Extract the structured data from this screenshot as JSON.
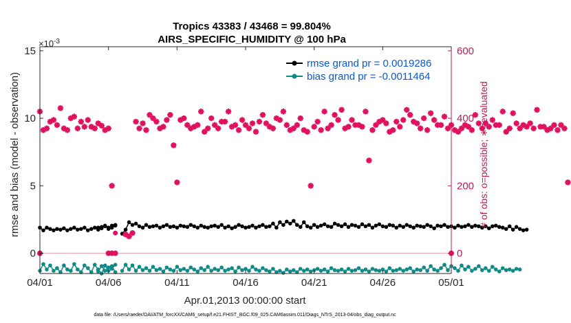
{
  "chart_data": {
    "type": "line",
    "title_line1": "Tropics 43383 / 43468 = 99.804%",
    "title_line2": "AIRS_SPECIFIC_HUMIDITY @ 100 hPa",
    "xlabel": "Apr.01,2013 00:00:00 start",
    "ylabel_left": "rmse and bias (model - observation)",
    "ylabel_right": "# of obs: o=possible; ∗=evaluated",
    "exponent_label": "×10",
    "exponent_power": "-3",
    "x_range_days": [
      0,
      30
    ],
    "y_left_range": [
      -1.5,
      15.3
    ],
    "y_right_range": [
      -60.0,
      612.0
    ],
    "x_ticks": [
      {
        "day": 0,
        "label": "04/01"
      },
      {
        "day": 5,
        "label": "04/06"
      },
      {
        "day": 10,
        "label": "04/11"
      },
      {
        "day": 15,
        "label": "04/16"
      },
      {
        "day": 20,
        "label": "04/21"
      },
      {
        "day": 25,
        "label": "04/26"
      },
      {
        "day": 30,
        "label": "05/01"
      }
    ],
    "y_left_ticks": [
      {
        "value": 0,
        "label": "0"
      },
      {
        "value": 5,
        "label": "5"
      },
      {
        "value": 10,
        "label": "10"
      },
      {
        "value": 15,
        "label": "15"
      }
    ],
    "y_right_ticks": [
      {
        "value": 0,
        "label": "0"
      },
      {
        "value": 200,
        "label": "200"
      },
      {
        "value": 400,
        "label": "400"
      },
      {
        "value": 600,
        "label": "600"
      }
    ],
    "legend": [
      {
        "name": "rmse grand pr = 0.0019286",
        "color": "#000000"
      },
      {
        "name": "bias grand pr = -0.0011464",
        "color": "#0e8a87"
      }
    ],
    "series": [
      {
        "name": "rmse",
        "axis": "left",
        "color": "#000000",
        "segments": [
          {
            "start_day": 0.0,
            "step": 0.25,
            "values": [
              1.9,
              1.7,
              1.9,
              1.8,
              1.7,
              1.8,
              1.75,
              1.85,
              1.7,
              1.8,
              1.9,
              1.75,
              1.8,
              1.9,
              1.7,
              1.8,
              1.9,
              1.75,
              1.85,
              2.0,
              1.8,
              1.9,
              2.05
            ]
          },
          {
            "start_day": 4.25,
            "step": 0.25,
            "values": [
              1.9,
              1.95,
              2.05,
              1.9,
              2.05,
              2.1
            ]
          },
          {
            "start_day": 6.0,
            "step": 0.25,
            "values": [
              1.45,
              1.75,
              2.3,
              2.1,
              2.2,
              2.0,
              1.9,
              2.1,
              1.95,
              2.0,
              2.05,
              1.9,
              2.0,
              2.1,
              1.95,
              2.0,
              1.9,
              2.05,
              2.0,
              1.95,
              2.1,
              2.0,
              1.9,
              2.05,
              1.95,
              1.9,
              2.0,
              2.05,
              1.95,
              2.1,
              1.9,
              2.0,
              1.85,
              1.95,
              2.1,
              2.0,
              1.9,
              1.95,
              2.05,
              1.9,
              2.0,
              2.1,
              1.95,
              2.0,
              2.2,
              1.9,
              2.3,
              2.1,
              2.35,
              2.2,
              2.4,
              2.1,
              1.95,
              2.3,
              2.0,
              1.9,
              2.1,
              1.95,
              2.05,
              2.15,
              2.0,
              1.95,
              2.2,
              2.1,
              2.0,
              2.15,
              1.95,
              2.1,
              2.05,
              1.95,
              2.15,
              2.0,
              2.1,
              1.9,
              2.05,
              2.15,
              2.0,
              1.95,
              2.1,
              2.05,
              1.9,
              2.05,
              1.95,
              2.1,
              2.0,
              1.9,
              2.05,
              2.0,
              1.95,
              2.1,
              2.0,
              1.85,
              2.05,
              2.0,
              2.1,
              1.95,
              2.0,
              1.9,
              2.05,
              1.95,
              2.0,
              2.1,
              1.95,
              2.05,
              2.0,
              1.9,
              2.0,
              1.85,
              2.0,
              2.05,
              1.95,
              1.9,
              1.8,
              2.0,
              1.75,
              1.95,
              1.8,
              1.7,
              1.75
            ]
          }
        ]
      },
      {
        "name": "bias",
        "axis": "left",
        "color": "#0e8a87",
        "segments": [
          {
            "start_day": 0.0,
            "step": 0.25,
            "values": [
              -1.3,
              -0.8,
              -1.2,
              -0.9,
              -1.3,
              -1.1,
              -1.4,
              -0.9,
              -1.2,
              -1.3,
              -0.8,
              -1.2,
              -1.4,
              -0.9,
              -1.1,
              -1.4,
              -0.85,
              -1.2,
              -1.5,
              -0.9,
              -1.3,
              -1.15,
              -0.85
            ]
          },
          {
            "start_day": 4.25,
            "step": 0.25,
            "values": [
              -1.35,
              -0.95,
              -1.3,
              -1.05,
              -0.95,
              -1.4
            ]
          },
          {
            "start_day": 6.0,
            "step": 0.25,
            "values": [
              -1.3,
              -0.85,
              -1.2,
              -0.9,
              -1.3,
              -1.0,
              -1.25,
              -1.1,
              -1.3,
              -1.0,
              -1.25,
              -1.15,
              -1.35,
              -1.05,
              -1.2,
              -1.3,
              -1.0,
              -1.25,
              -1.15,
              -1.3,
              -1.05,
              -1.2,
              -1.35,
              -1.1,
              -1.25,
              -1.0,
              -1.3,
              -1.15,
              -1.25,
              -1.05,
              -1.3,
              -1.2,
              -1.1,
              -1.35,
              -1.05,
              -1.25,
              -1.15,
              -1.3,
              -1.0,
              -1.2,
              -1.3,
              -1.1,
              -1.25,
              -1.35,
              -1.15,
              -1.4,
              -1.3,
              -1.45,
              -1.2,
              -1.35,
              -1.25,
              -1.4,
              -1.15,
              -1.3,
              -1.2,
              -1.35,
              -1.25,
              -1.15,
              -1.3,
              -1.2,
              -1.35,
              -1.1,
              -1.25,
              -1.3,
              -1.2,
              -1.35,
              -1.15,
              -1.3,
              -1.25,
              -1.1,
              -1.3,
              -1.2,
              -1.35,
              -1.15,
              -1.25,
              -1.3,
              -1.2,
              -1.35,
              -1.1,
              -1.3,
              -1.25,
              -1.15,
              -1.3,
              -1.2,
              -1.1,
              -1.35,
              -1.2,
              -1.25,
              -1.05,
              -1.3,
              -0.95,
              -1.2,
              -1.3,
              -1.1,
              -0.85,
              -1.25,
              -0.95,
              -1.1,
              -1.3,
              -0.9,
              -1.2,
              -1.0,
              -1.3,
              -1.15,
              -0.95,
              -1.25,
              -1.1,
              -1.3,
              -1.0,
              -1.2,
              -1.35,
              -1.1,
              -1.25,
              -1.2,
              -1.3,
              -1.15,
              -1.2
            ]
          }
        ]
      }
    ],
    "obs_evaluated": {
      "axis": "right",
      "color": "#e0115f",
      "start_day": 0.0,
      "step": 0.25,
      "values": [
        420,
        365,
        370,
        390,
        395,
        380,
        430,
        370,
        365,
        400,
        405,
        370,
        390,
        375,
        395,
        375,
        370,
        385,
        378,
        365,
        370,
        200,
        null,
        null,
        null,
        56,
        50,
        60,
        390,
        370,
        385,
        365,
        410,
        400,
        390,
        370,
        375,
        395,
        410,
        320,
        210,
        395,
        400,
        380,
        370,
        375,
        380,
        420,
        360,
        370,
        400,
        380,
        370,
        390,
        390,
        420,
        375,
        380,
        365,
        395,
        380,
        370,
        385,
        360,
        390,
        410,
        385,
        375,
        370,
        400,
        395,
        420,
        380,
        365,
        370,
        380,
        400,
        365,
        360,
        200,
        375,
        390,
        365,
        420,
        370,
        380,
        410,
        395,
        425,
        370,
        375,
        395,
        380,
        380,
        375,
        420,
        275,
        365,
        380,
        390,
        395,
        385,
        360,
        365,
        390,
        375,
        395,
        425,
        410,
        390,
        385,
        370,
        400,
        365,
        415,
        395,
        380,
        380,
        405,
        370,
        380,
        365,
        360,
        370,
        380,
        375,
        365,
        410,
        385,
        370,
        385,
        375,
        395,
        380,
        380,
        420,
        360,
        370,
        415,
        385,
        370,
        380,
        375,
        385,
        370,
        425,
        375,
        375,
        365,
        370,
        380,
        365,
        380,
        370,
        210
      ],
      "marker": "asterisk"
    },
    "obs_possible_zero_days": [
      0.0,
      5.0,
      5.25,
      5.5,
      30.0
    ],
    "obs_possible_low": [
      {
        "day": 5.5,
        "value": 60
      }
    ],
    "footer": "data file: /Users/raeder/DAI/ATM_forcXX/CAM6_setup/f.e21.FHIST_BGC.f09_025.CAM6assim.011/Diags_NTrS_2013-04/obs_diag_output.nc"
  }
}
